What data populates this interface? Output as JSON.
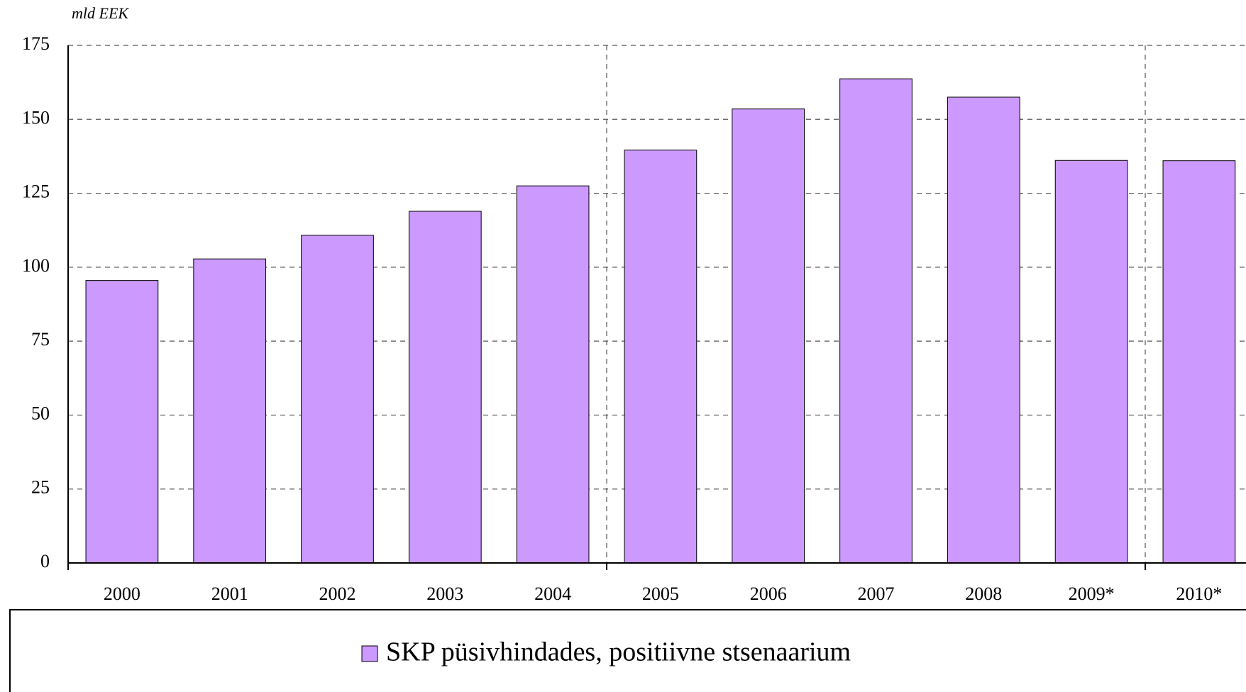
{
  "chart_data": {
    "type": "bar",
    "y_label": "mld EEK",
    "categories": [
      "2000",
      "2001",
      "2002",
      "2003",
      "2004",
      "2005",
      "2006",
      "2007",
      "2008",
      "2009*",
      "2010*"
    ],
    "series": [
      {
        "name": "SKP püsivhindades, positiivne stsenaarium",
        "color": "#cc99ff",
        "values": [
          95.5,
          102.8,
          110.8,
          118.9,
          127.5,
          139.6,
          153.5,
          163.7,
          157.5,
          136.1,
          136
        ]
      }
    ],
    "ylim": [
      0,
      175
    ],
    "yticks": [
      0,
      25,
      50,
      75,
      100,
      125,
      150,
      175
    ],
    "grid": true,
    "legend": "bottom"
  }
}
